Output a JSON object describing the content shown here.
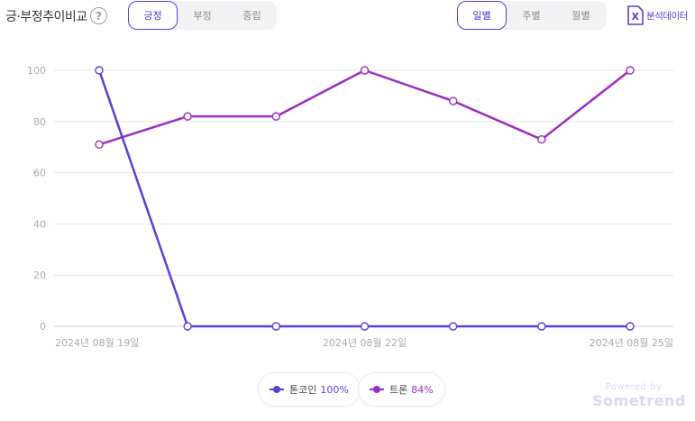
{
  "header": {
    "title": "긍·부정추이비교",
    "help_glyph": "?"
  },
  "sentiment_tabs": [
    {
      "label": "긍정",
      "active": true
    },
    {
      "label": "부정",
      "active": false
    },
    {
      "label": "중립",
      "active": false
    }
  ],
  "period_tabs": [
    {
      "label": "일별",
      "active": true
    },
    {
      "label": "주별",
      "active": false
    },
    {
      "label": "월별",
      "active": false
    }
  ],
  "export": {
    "label": "분석데이터",
    "icon": "excel-icon",
    "icon_letter": "X"
  },
  "colors": {
    "accent": "#5b3fd1",
    "series1": "#5a3fd6",
    "series2": "#9b2dc0",
    "grid": "#e4e4e4",
    "axis_text": "#aaaaaa"
  },
  "chart_data": {
    "type": "line",
    "x": [
      "2024-08-19",
      "2024-08-20",
      "2024-08-21",
      "2024-08-22",
      "2024-08-23",
      "2024-08-24",
      "2024-08-25"
    ],
    "x_tick_labels": [
      {
        "index": 0,
        "label": "2024년 08월 19일"
      },
      {
        "index": 3,
        "label": "2024년 08월 22일"
      },
      {
        "index": 6,
        "label": "2024년 08월 25일"
      }
    ],
    "yticks": [
      0,
      20,
      40,
      60,
      80,
      100
    ],
    "ylim": [
      0,
      100
    ],
    "grid": true,
    "series": [
      {
        "name": "톤코인",
        "values": [
          100,
          0,
          0,
          0,
          0,
          0,
          0
        ],
        "color": "#5a3fd6"
      },
      {
        "name": "트론",
        "values": [
          71,
          82,
          82,
          100,
          88,
          73,
          100
        ],
        "color": "#9b2dc0"
      }
    ]
  },
  "legend": [
    {
      "name": "톤코인",
      "value": "100%",
      "color": "#5a3fd6"
    },
    {
      "name": "트론",
      "value": "84%",
      "color": "#9b2dc0"
    }
  ],
  "branding": {
    "powered": "Powered by",
    "brand": "Sometrend"
  }
}
